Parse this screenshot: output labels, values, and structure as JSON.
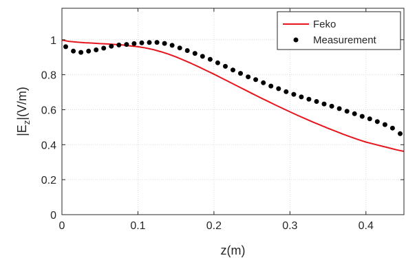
{
  "chart_data": {
    "type": "line",
    "xlabel": "z(m)",
    "ylabel_main": "|E",
    "ylabel_sub": "z",
    "ylabel_tail": "|(V/m)",
    "xlim": [
      0,
      0.45
    ],
    "ylim": [
      0,
      1.18
    ],
    "xticks": [
      0,
      0.1,
      0.2,
      0.3,
      0.4
    ],
    "xtick_labels": [
      "0",
      "0.1",
      "0.2",
      "0.3",
      "0.4"
    ],
    "yticks": [
      0,
      0.2,
      0.4,
      0.6,
      0.8,
      1.0
    ],
    "ytick_labels": [
      "0",
      "0.2",
      "0.4",
      "0.6",
      "0.8",
      "1"
    ],
    "grid": true,
    "legend_position": "top-right",
    "colors": {
      "feko": "#e8141c",
      "measurement": "#000000",
      "grid": "#d9d9d9",
      "axis": "#262626"
    },
    "series": [
      {
        "name": "Feko",
        "style": "line",
        "x": [
          0,
          0.01,
          0.02,
          0.03,
          0.04,
          0.05,
          0.06,
          0.07,
          0.08,
          0.09,
          0.1,
          0.11,
          0.12,
          0.13,
          0.14,
          0.15,
          0.16,
          0.17,
          0.18,
          0.19,
          0.2,
          0.21,
          0.22,
          0.23,
          0.24,
          0.25,
          0.26,
          0.27,
          0.28,
          0.29,
          0.3,
          0.31,
          0.32,
          0.33,
          0.34,
          0.35,
          0.36,
          0.37,
          0.38,
          0.39,
          0.4,
          0.41,
          0.42,
          0.43,
          0.44,
          0.45
        ],
        "y": [
          0.998,
          0.99,
          0.986,
          0.983,
          0.981,
          0.978,
          0.976,
          0.973,
          0.97,
          0.965,
          0.96,
          0.953,
          0.944,
          0.932,
          0.918,
          0.902,
          0.884,
          0.865,
          0.845,
          0.824,
          0.803,
          0.781,
          0.759,
          0.737,
          0.715,
          0.693,
          0.671,
          0.65,
          0.629,
          0.608,
          0.588,
          0.568,
          0.549,
          0.53,
          0.512,
          0.494,
          0.477,
          0.46,
          0.444,
          0.429,
          0.415,
          0.404,
          0.393,
          0.382,
          0.371,
          0.362
        ]
      },
      {
        "name": "Measurement",
        "style": "markers",
        "x": [
          0.005,
          0.015,
          0.025,
          0.035,
          0.045,
          0.055,
          0.065,
          0.075,
          0.085,
          0.095,
          0.105,
          0.115,
          0.125,
          0.135,
          0.145,
          0.155,
          0.165,
          0.175,
          0.185,
          0.195,
          0.205,
          0.215,
          0.225,
          0.235,
          0.245,
          0.255,
          0.265,
          0.275,
          0.285,
          0.295,
          0.305,
          0.315,
          0.325,
          0.335,
          0.345,
          0.355,
          0.365,
          0.375,
          0.385,
          0.395,
          0.405,
          0.415,
          0.425,
          0.435,
          0.445
        ],
        "y": [
          0.96,
          0.935,
          0.928,
          0.935,
          0.942,
          0.952,
          0.963,
          0.97,
          0.973,
          0.978,
          0.982,
          0.984,
          0.985,
          0.979,
          0.968,
          0.953,
          0.938,
          0.922,
          0.905,
          0.888,
          0.868,
          0.848,
          0.827,
          0.808,
          0.788,
          0.772,
          0.754,
          0.735,
          0.72,
          0.703,
          0.688,
          0.673,
          0.66,
          0.647,
          0.633,
          0.62,
          0.606,
          0.591,
          0.577,
          0.562,
          0.548,
          0.532,
          0.515,
          0.495,
          0.463
        ]
      }
    ]
  }
}
